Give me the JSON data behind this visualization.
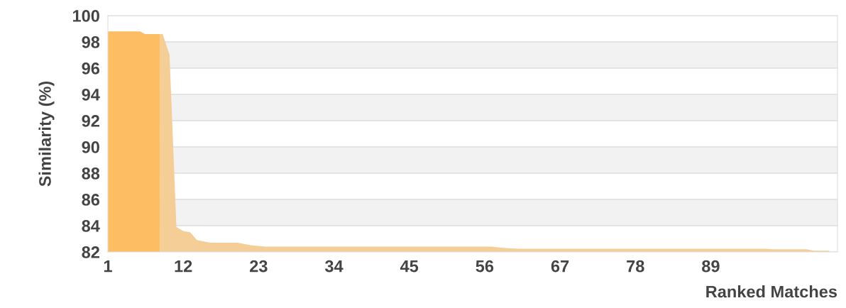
{
  "chart_data": {
    "type": "area",
    "xlabel": "Ranked Matches",
    "ylabel": "Similarity (%)",
    "xlim": [
      1,
      107.5
    ],
    "xticks": [
      1,
      12,
      23,
      34,
      45,
      56,
      67,
      78,
      89
    ],
    "ylim": [
      82,
      100
    ],
    "yticks": [
      82,
      84,
      86,
      88,
      90,
      92,
      94,
      96,
      98,
      100
    ],
    "grid": "y",
    "legend": false,
    "bands": [
      {
        "axis": "y",
        "from": 84,
        "to": 86,
        "color": "#f2f2f2"
      },
      {
        "axis": "y",
        "from": 88,
        "to": 90,
        "color": "#f2f2f2"
      },
      {
        "axis": "y",
        "from": 92,
        "to": 94,
        "color": "#f2f2f2"
      },
      {
        "axis": "y",
        "from": 96,
        "to": 98,
        "color": "#f2f2f2"
      }
    ],
    "series": [
      {
        "color": "#f5cd96",
        "x": [
          8.6,
          9,
          10,
          11,
          12,
          13,
          14,
          15,
          16,
          20,
          21,
          22,
          24,
          57,
          59,
          61,
          97,
          98,
          103,
          104,
          106.3
        ],
        "values": [
          98.6,
          98.6,
          97.0,
          83.9,
          83.6,
          83.5,
          82.9,
          82.8,
          82.7,
          82.7,
          82.6,
          82.5,
          82.4,
          82.4,
          82.3,
          82.25,
          82.25,
          82.2,
          82.2,
          82.1,
          82.1
        ]
      },
      {
        "color": "#fdbd62",
        "x": [
          1,
          2,
          3,
          4,
          5,
          5.7,
          6.4,
          7,
          8,
          8.6
        ],
        "values": [
          98.8,
          98.8,
          98.8,
          98.8,
          98.8,
          98.8,
          98.6,
          98.6,
          98.6,
          98.6
        ]
      }
    ]
  }
}
